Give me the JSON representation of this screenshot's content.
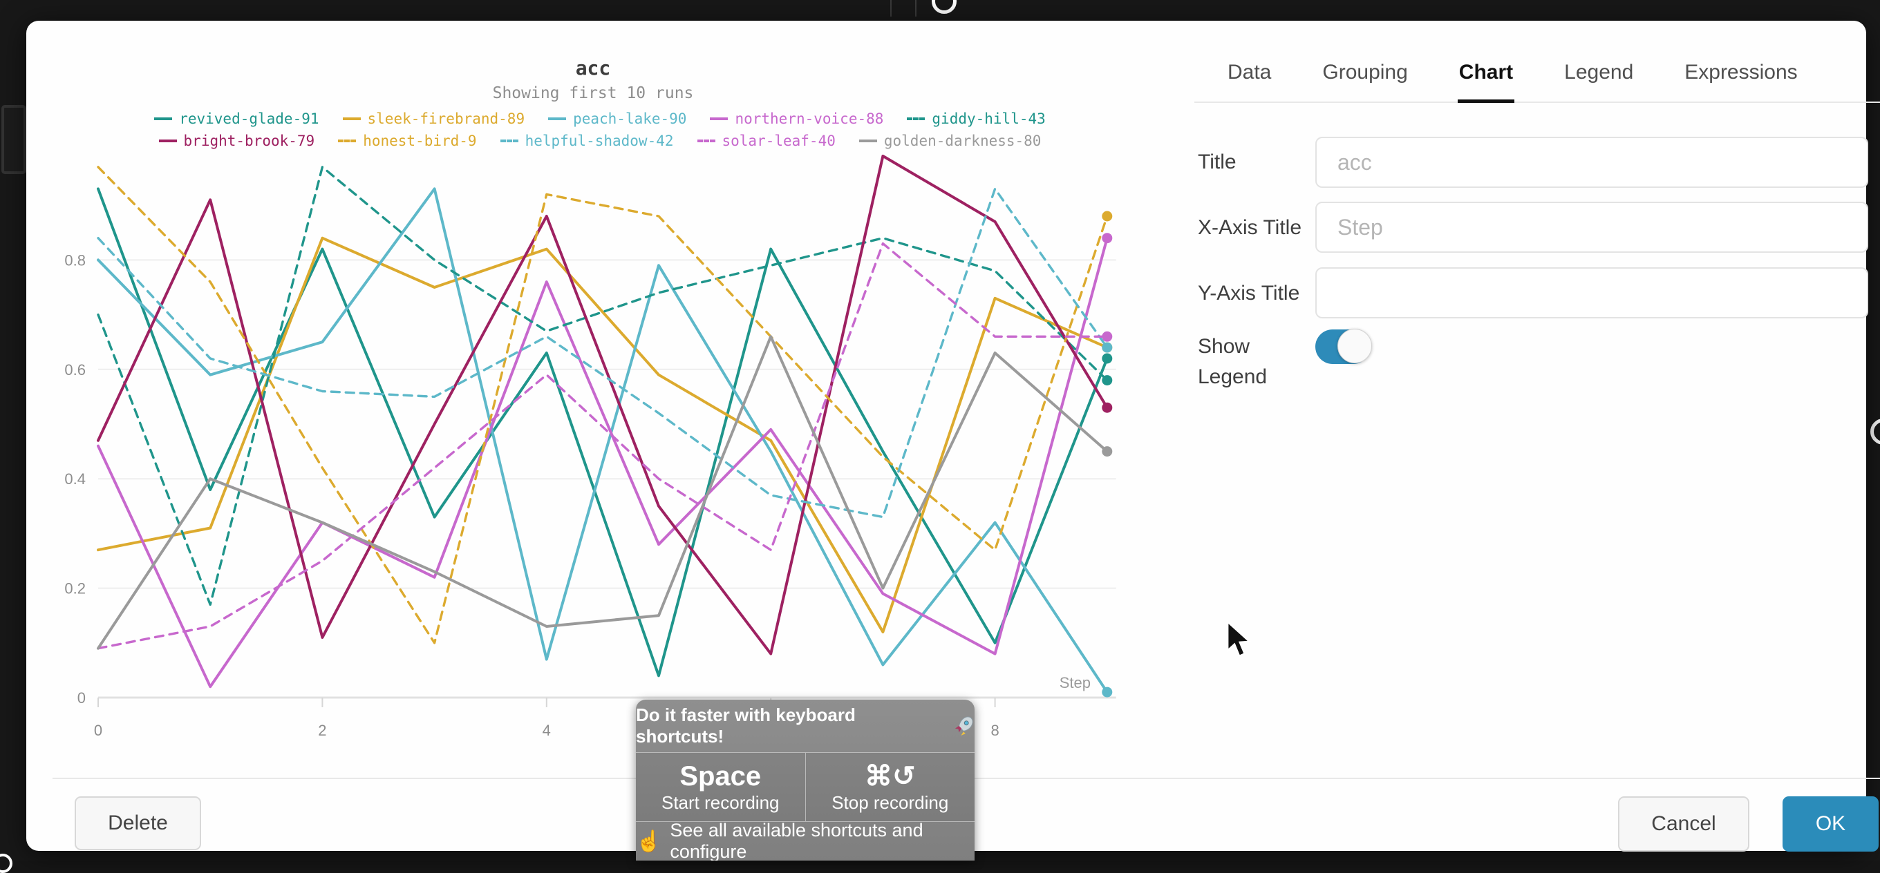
{
  "chart_data": {
    "type": "line",
    "title": "acc",
    "subtitle": "Showing first 10 runs",
    "xlabel": "Step",
    "ylabel": "",
    "x": [
      0,
      1,
      2,
      3,
      4,
      5,
      6,
      7,
      8,
      9
    ],
    "x_ticks": [
      0,
      2,
      4,
      6,
      8
    ],
    "y_ticks": [
      0,
      0.2,
      0.4,
      0.6,
      0.8
    ],
    "xlim": [
      0,
      9.1
    ],
    "ylim": [
      0,
      1.02
    ],
    "grid": true,
    "legend_position": "top",
    "series": [
      {
        "name": "revived-glade-91",
        "color": "#1f958b",
        "dash": false,
        "values": [
          0.93,
          0.38,
          0.82,
          0.33,
          0.63,
          0.04,
          0.82,
          0.45,
          0.1,
          0.62
        ]
      },
      {
        "name": "sleek-firebrand-89",
        "color": "#dcaa2e",
        "dash": false,
        "values": [
          0.27,
          0.31,
          0.84,
          0.75,
          0.82,
          0.59,
          0.47,
          0.12,
          0.73,
          0.64
        ]
      },
      {
        "name": "peach-lake-90",
        "color": "#5db8c9",
        "dash": false,
        "values": [
          0.8,
          0.59,
          0.65,
          0.93,
          0.07,
          0.79,
          0.45,
          0.06,
          0.32,
          0.01
        ]
      },
      {
        "name": "northern-voice-88",
        "color": "#c768cd",
        "dash": false,
        "values": [
          0.46,
          0.02,
          0.32,
          0.22,
          0.76,
          0.28,
          0.49,
          0.19,
          0.08,
          0.84
        ]
      },
      {
        "name": "giddy-hill-43",
        "color": "#1f958b",
        "dash": true,
        "values": [
          0.7,
          0.17,
          0.97,
          0.8,
          0.67,
          0.74,
          0.79,
          0.84,
          0.78,
          0.58
        ]
      },
      {
        "name": "bright-brook-79",
        "color": "#9e2161",
        "dash": false,
        "values": [
          0.47,
          0.91,
          0.11,
          0.5,
          0.88,
          0.35,
          0.08,
          0.99,
          0.87,
          0.53
        ]
      },
      {
        "name": "honest-bird-9",
        "color": "#dcaa2e",
        "dash": true,
        "values": [
          0.97,
          0.76,
          0.42,
          0.1,
          0.92,
          0.88,
          0.66,
          0.44,
          0.27,
          0.88
        ]
      },
      {
        "name": "helpful-shadow-42",
        "color": "#5db8c9",
        "dash": true,
        "values": [
          0.84,
          0.62,
          0.56,
          0.55,
          0.66,
          0.52,
          0.37,
          0.33,
          0.93,
          0.64
        ]
      },
      {
        "name": "solar-leaf-40",
        "color": "#c768cd",
        "dash": true,
        "values": [
          0.09,
          0.13,
          0.25,
          0.42,
          0.59,
          0.4,
          0.27,
          0.83,
          0.66,
          0.66
        ]
      },
      {
        "name": "golden-darkness-80",
        "color": "#9a9a9a",
        "dash": false,
        "values": [
          0.09,
          0.4,
          0.32,
          0.23,
          0.13,
          0.15,
          0.66,
          0.2,
          0.63,
          0.45
        ]
      }
    ]
  },
  "panel": {
    "tabs": [
      {
        "label": "Data",
        "active": false
      },
      {
        "label": "Grouping",
        "active": false
      },
      {
        "label": "Chart",
        "active": true
      },
      {
        "label": "Legend",
        "active": false
      },
      {
        "label": "Expressions",
        "active": false
      }
    ],
    "fields": [
      {
        "label": "Title",
        "placeholder": "acc",
        "value": ""
      },
      {
        "label": "X-Axis Title",
        "placeholder": "Step",
        "value": ""
      },
      {
        "label": "Y-Axis Title",
        "placeholder": "",
        "value": ""
      }
    ],
    "toggle": {
      "label": "Show Legend",
      "state": "on",
      "color": "#2e8bb9"
    }
  },
  "footer": {
    "delete_label": "Delete",
    "cancel_label": "Cancel",
    "ok_label": "OK",
    "ok_color": "#2b8cba"
  },
  "overlay": {
    "title": "Do it faster with keyboard shortcuts!",
    "rocket_emoji": "🚀",
    "shortcuts": [
      {
        "keys": "Space",
        "action": "Start recording"
      },
      {
        "keys": "⌘↺",
        "action": "Stop recording"
      }
    ],
    "pointer_emoji": "☝",
    "footer_text": "See all available shortcuts and configure"
  }
}
